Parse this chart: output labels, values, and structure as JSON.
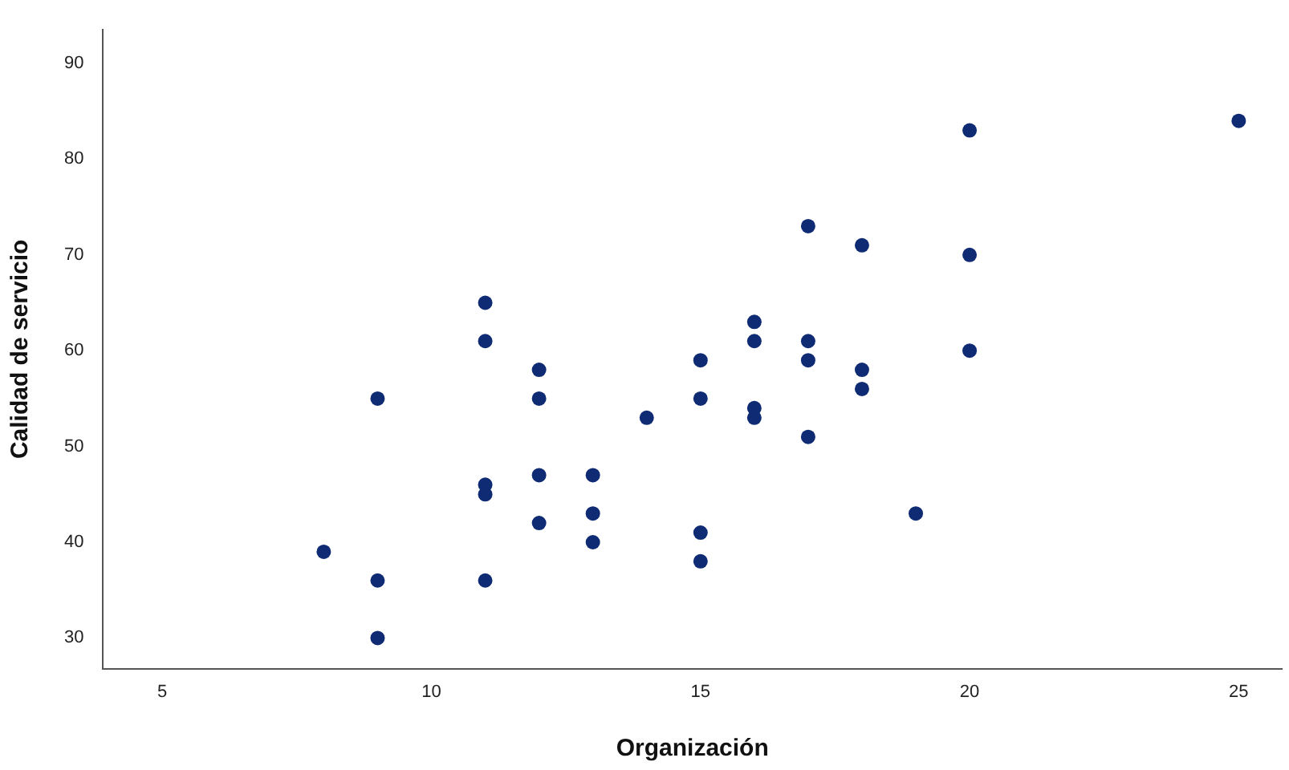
{
  "chart_data": {
    "type": "scatter",
    "xlabel": "Organización",
    "ylabel": "Calidad de servicio",
    "x": [
      8,
      9,
      9,
      9,
      11,
      11,
      11,
      11,
      11,
      12,
      12,
      12,
      12,
      13,
      13,
      13,
      14,
      15,
      15,
      15,
      15,
      16,
      16,
      16,
      16,
      17,
      17,
      17,
      17,
      18,
      18,
      18,
      19,
      20,
      20,
      20,
      25
    ],
    "series": [
      {
        "color": "#0f2b73",
        "values": [
          39,
          55,
          36,
          30,
          65,
          61,
          46,
          45,
          36,
          58,
          55,
          47,
          42,
          47,
          43,
          40,
          53,
          59,
          55,
          41,
          38,
          63,
          61,
          54,
          53,
          73,
          61,
          59,
          51,
          71,
          58,
          56,
          43,
          83,
          70,
          60,
          84
        ]
      }
    ],
    "xlim": [
      3.9,
      25.8
    ],
    "xticks": [
      5,
      10,
      15,
      20,
      25
    ],
    "ylim": [
      26.8,
      93.5
    ],
    "yticks": [
      30,
      40,
      50,
      60,
      70,
      80,
      90
    ],
    "marker": "circle",
    "grid": false,
    "legend": false
  }
}
